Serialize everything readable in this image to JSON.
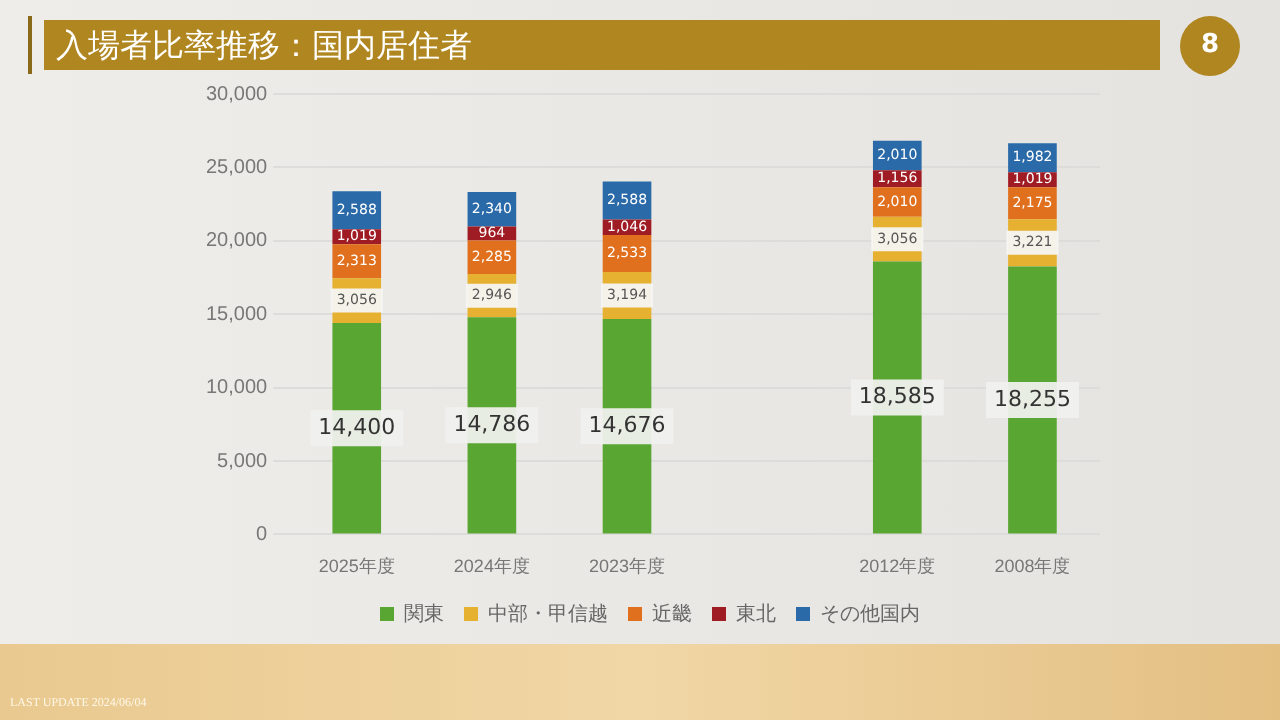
{
  "chart_data": {
    "type": "bar",
    "title": "入場者比率推移：国内居住者",
    "stacked": true,
    "grid": "y",
    "legend": "bottom",
    "categories": [
      "2025年度",
      "2024年度",
      "2023年度",
      null,
      "2012年度",
      "2008年度"
    ],
    "series": [
      {
        "name": "関東",
        "color": "#5aa632",
        "values": [
          14400,
          14786,
          14676,
          null,
          18585,
          18255
        ],
        "value_labels": [
          "14,400",
          "14,786",
          "14,676",
          null,
          "18,585",
          "18,255"
        ]
      },
      {
        "name": "中部・甲信越",
        "color": "#e6b030",
        "values": [
          3056,
          2946,
          3194,
          null,
          3056,
          3221
        ],
        "value_labels": [
          "3,056",
          "2,946",
          "3,194",
          null,
          "3,056",
          "3,221"
        ]
      },
      {
        "name": "近畿",
        "color": "#e0701e",
        "values": [
          2313,
          2285,
          2533,
          null,
          2010,
          2175
        ],
        "value_labels": [
          "2,313",
          "2,285",
          "2,533",
          null,
          "2,010",
          "2,175"
        ]
      },
      {
        "name": "東北",
        "color": "#a01c24",
        "values": [
          1019,
          964,
          1046,
          null,
          1156,
          1019
        ],
        "value_labels": [
          "1,019",
          "964",
          "1,046",
          null,
          "1,156",
          "1,019"
        ]
      },
      {
        "name": "その他国内",
        "color": "#2a6aa8",
        "values": [
          2588,
          2340,
          2588,
          null,
          2010,
          1982
        ],
        "value_labels": [
          "2,588",
          "2,340",
          "2,588",
          null,
          "2,010",
          "1,982"
        ]
      }
    ],
    "ylim": [
      0,
      30000
    ],
    "yticks": [
      0,
      {
        "value": 5000,
        "label": "5,000"
      },
      {
        "value": 10000,
        "label": "10,000"
      },
      {
        "value": 15000,
        "label": "15,000"
      },
      {
        "value": 20000,
        "label": "20,000"
      },
      {
        "value": 25000,
        "label": "25,000"
      },
      {
        "value": 30000,
        "label": "30,000"
      }
    ],
    "annotations": [
      "8",
      "LAST UPDATE 2024/06/04"
    ]
  }
}
